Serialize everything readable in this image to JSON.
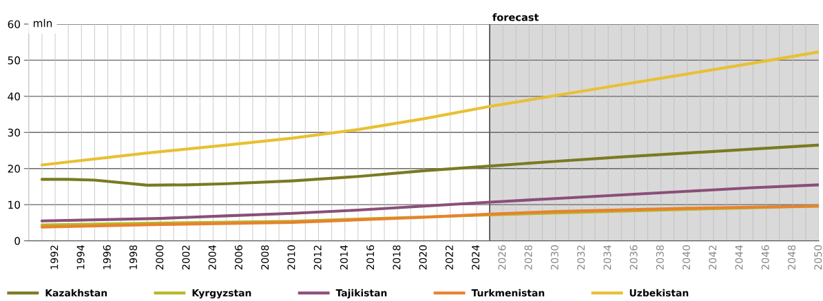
{
  "chart_data": {
    "type": "line",
    "ylabel": "mln",
    "xlim": [
      1990,
      2050
    ],
    "ylim": [
      0,
      60
    ],
    "yticks": [
      0,
      10,
      20,
      30,
      40,
      50,
      60
    ],
    "xticks": [
      1992,
      1994,
      1996,
      1998,
      2000,
      2002,
      2004,
      2006,
      2008,
      2010,
      2012,
      2014,
      2016,
      2018,
      2020,
      2022,
      2024,
      2026,
      2028,
      2030,
      2032,
      2034,
      2036,
      2038,
      2040,
      2042,
      2044,
      2046,
      2048,
      2050
    ],
    "grid": true,
    "legend": "bottom",
    "line_style": "solid",
    "marker": "none",
    "bands": [
      {
        "axis": "x",
        "from": 2025,
        "to": 2050,
        "label": "forecast",
        "color": "#d9d9d9"
      }
    ],
    "ref_lines": [
      {
        "axis": "x",
        "value": 2025,
        "color": "#555555",
        "line_style": "solid"
      }
    ],
    "series": [
      {
        "name": "Kazakhstan",
        "color": "#7a7a22",
        "x": [
          1991,
          1993,
          1995,
          1999,
          2002,
          2005,
          2010,
          2015,
          2020,
          2025,
          2030,
          2035,
          2040,
          2045,
          2050
        ],
        "values": [
          17.0,
          17.0,
          16.8,
          15.4,
          15.5,
          15.8,
          16.6,
          17.8,
          19.4,
          20.7,
          22.0,
          23.2,
          24.3,
          25.4,
          26.5
        ]
      },
      {
        "name": "Kyrgyzstan",
        "color": "#b5b82a",
        "x": [
          1991,
          2000,
          2010,
          2015,
          2020,
          2025,
          2030,
          2040,
          2050
        ],
        "values": [
          4.4,
          4.9,
          5.4,
          6.0,
          6.6,
          7.2,
          7.7,
          8.7,
          9.6
        ]
      },
      {
        "name": "Tajikistan",
        "color": "#8a4f78",
        "x": [
          1991,
          2000,
          2005,
          2010,
          2015,
          2020,
          2025,
          2030,
          2035,
          2040,
          2045,
          2050
        ],
        "values": [
          5.5,
          6.2,
          6.9,
          7.6,
          8.5,
          9.6,
          10.7,
          11.7,
          12.7,
          13.7,
          14.7,
          15.5
        ]
      },
      {
        "name": "Turkmenistan",
        "color": "#e8822e",
        "x": [
          1991,
          2000,
          2010,
          2015,
          2020,
          2025,
          2030,
          2040,
          2050
        ],
        "values": [
          3.8,
          4.5,
          5.1,
          5.8,
          6.5,
          7.4,
          8.1,
          9.0,
          9.6
        ]
      },
      {
        "name": "Uzbekistan",
        "color": "#e8c033",
        "x": [
          1991,
          1999,
          2005,
          2010,
          2015,
          2020,
          2025,
          2030,
          2035,
          2040,
          2045,
          2050
        ],
        "values": [
          21.0,
          24.3,
          26.5,
          28.4,
          30.8,
          33.8,
          37.2,
          40.2,
          43.2,
          46.2,
          49.2,
          52.3
        ]
      }
    ]
  }
}
